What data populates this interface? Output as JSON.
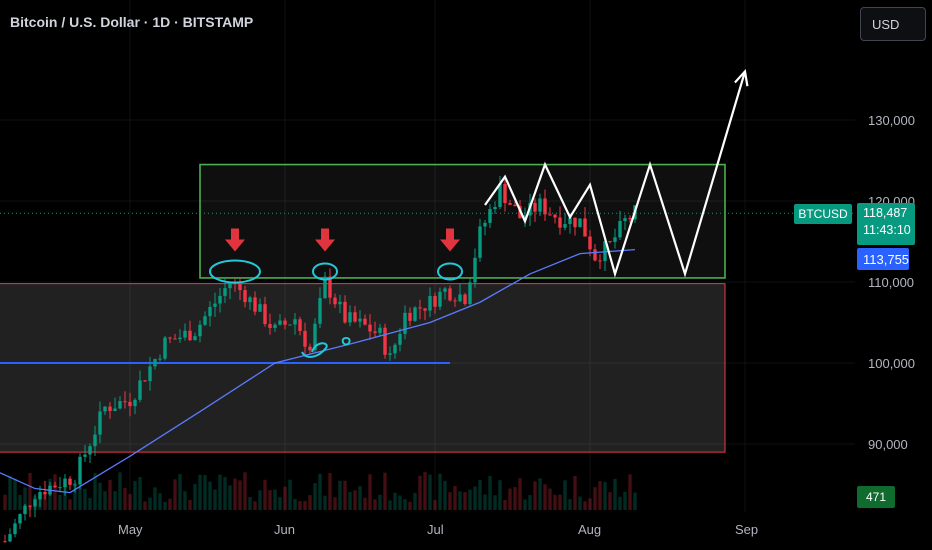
{
  "header": {
    "title": "Bitcoin / U.S. Dollar · 1D · BITSTAMP"
  },
  "toolbar": {
    "currency": "USD"
  },
  "colors": {
    "up": "#089981",
    "down": "#f23645",
    "ma": "#5b7bff",
    "support": "#2962ff",
    "range_box": "#4caf50",
    "zone_box": "#f23645",
    "annotation": "#ffffff",
    "marker": "#e0353f",
    "circle": "#26c6da"
  },
  "price_labels": {
    "symbol": "BTCUSD",
    "last_price": "118,487",
    "countdown": "11:43:10",
    "ma_value": "113,755",
    "volume": "471"
  },
  "chart_data": {
    "type": "candlestick",
    "symbol": "BTCUSD",
    "timeframe": "1D",
    "exchange": "BITSTAMP",
    "y_ticks": [
      {
        "value": 90000,
        "label": "90,000"
      },
      {
        "value": 100000,
        "label": "100,000"
      },
      {
        "value": 110000,
        "label": "110,000"
      },
      {
        "value": 120000,
        "label": "120,000"
      },
      {
        "value": 130000,
        "label": "130,000"
      }
    ],
    "x_ticks": [
      {
        "date": "2025-05-01",
        "label": "May"
      },
      {
        "date": "2025-06-01",
        "label": "Jun"
      },
      {
        "date": "2025-07-01",
        "label": "Jul"
      },
      {
        "date": "2025-08-01",
        "label": "Aug"
      },
      {
        "date": "2025-09-01",
        "label": "Sep"
      }
    ],
    "close_path": [
      [
        "2025-04-06",
        78000
      ],
      [
        "2025-04-12",
        84000
      ],
      [
        "2025-04-20",
        86000
      ],
      [
        "2025-04-26",
        94500
      ],
      [
        "2025-05-01",
        95500
      ],
      [
        "2025-05-08",
        102500
      ],
      [
        "2025-05-14",
        104000
      ],
      [
        "2025-05-21",
        110000
      ],
      [
        "2025-05-24",
        108500
      ],
      [
        "2025-05-30",
        104000
      ],
      [
        "2025-06-03",
        105500
      ],
      [
        "2025-06-06",
        101500
      ],
      [
        "2025-06-09",
        110000
      ],
      [
        "2025-06-13",
        105500
      ],
      [
        "2025-06-17",
        104500
      ],
      [
        "2025-06-20",
        103500
      ],
      [
        "2025-06-22",
        100500
      ],
      [
        "2025-06-25",
        106000
      ],
      [
        "2025-06-30",
        107500
      ],
      [
        "2025-07-03",
        109000
      ],
      [
        "2025-07-07",
        108200
      ],
      [
        "2025-07-10",
        116000
      ],
      [
        "2025-07-14",
        121500
      ],
      [
        "2025-07-18",
        118000
      ],
      [
        "2025-07-22",
        119500
      ],
      [
        "2025-07-26",
        117800
      ],
      [
        "2025-07-30",
        117500
      ],
      [
        "2025-08-02",
        113200
      ],
      [
        "2025-08-05",
        114500
      ],
      [
        "2025-08-08",
        117500
      ],
      [
        "2025-08-10",
        118487
      ]
    ],
    "moving_average": {
      "value": 113755,
      "points": [
        [
          "2025-04-03",
          87000
        ],
        [
          "2025-04-12",
          84500
        ],
        [
          "2025-04-19",
          84000
        ],
        [
          "2025-05-01",
          88500
        ],
        [
          "2025-05-15",
          94000
        ],
        [
          "2025-05-30",
          100000
        ],
        [
          "2025-06-15",
          102500
        ],
        [
          "2025-06-30",
          105000
        ],
        [
          "2025-07-10",
          107500
        ],
        [
          "2025-07-20",
          111000
        ],
        [
          "2025-07-30",
          113500
        ],
        [
          "2025-08-10",
          114000
        ]
      ]
    },
    "support_line": {
      "value": 100000,
      "from": "2025-04-01",
      "to": "2025-07-04"
    },
    "lower_zone": {
      "from": "2025-04-01",
      "to": "2025-08-28",
      "top": 109800,
      "bottom": 89000
    },
    "range_box": {
      "from": "2025-05-15",
      "to": "2025-08-28",
      "top": 124500,
      "bottom": 110500
    },
    "projection": [
      [
        "2025-07-11",
        119500
      ],
      [
        "2025-07-15",
        123000
      ],
      [
        "2025-07-19",
        117500
      ],
      [
        "2025-07-23",
        124500
      ],
      [
        "2025-07-28",
        118000
      ],
      [
        "2025-08-01",
        122000
      ],
      [
        "2025-08-06",
        111000
      ],
      [
        "2025-08-13",
        124500
      ],
      [
        "2025-08-20",
        111000
      ],
      [
        "2025-09-01",
        136000
      ]
    ],
    "arrow_markers": [
      {
        "date": "2025-05-22",
        "price": 114500
      },
      {
        "date": "2025-06-09",
        "price": 114500
      },
      {
        "date": "2025-07-04",
        "price": 114500
      }
    ],
    "circled_highs": [
      {
        "date": "2025-05-22",
        "price": 111300
      },
      {
        "date": "2025-06-09",
        "price": 111300
      },
      {
        "date": "2025-07-04",
        "price": 111300
      }
    ]
  }
}
